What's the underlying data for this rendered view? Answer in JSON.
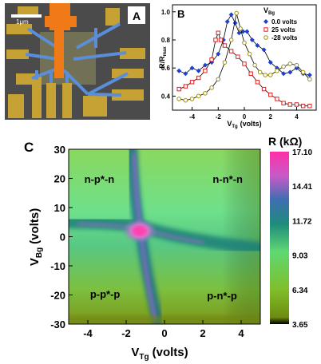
{
  "panel_a": {
    "label": "A",
    "scale_bar": "1μm"
  },
  "chart_data": [
    {
      "panel": "B",
      "type": "line",
      "xlabel_main": "V",
      "xlabel_sub": "Tg",
      "xlabel_unit": "(volts)",
      "ylabel_main": "R/R",
      "ylabel_sub": "max",
      "xlim": [
        -5.5,
        5.5
      ],
      "ylim": [
        0.3,
        1.05
      ],
      "xticks": [
        -4,
        -2,
        0,
        2,
        4
      ],
      "yticks": [
        0.4,
        0.6,
        0.8,
        1.0
      ],
      "ytick_labels": [
        "0.4",
        "0.6",
        "0.8",
        "1.0"
      ],
      "legend_title_main": "V",
      "legend_title_sub": "Bg",
      "legend_position": "top-right",
      "series": [
        {
          "name": "0.0 volts",
          "color": "#1f3fcf",
          "marker": "diamond",
          "x": [
            -5,
            -4.5,
            -4,
            -3.5,
            -3,
            -2.5,
            -2,
            -1.6,
            -1.3,
            -1.0,
            -0.7,
            -0.4,
            -0.1,
            0.2,
            0.6,
            1,
            1.5,
            2,
            2.5,
            3,
            3.5,
            4,
            4.5,
            5
          ],
          "y": [
            0.58,
            0.56,
            0.6,
            0.58,
            0.62,
            0.64,
            0.7,
            0.8,
            0.93,
            0.98,
            0.92,
            0.85,
            0.86,
            0.86,
            0.8,
            0.76,
            0.73,
            0.64,
            0.6,
            0.56,
            0.57,
            0.6,
            0.56,
            0.55
          ]
        },
        {
          "name": "25 volts",
          "color": "#e02020",
          "marker": "square",
          "x": [
            -5,
            -4.5,
            -4,
            -3.5,
            -3,
            -2.5,
            -2.2,
            -2.0,
            -1.8,
            -1.5,
            -1,
            -0.5,
            0,
            0.5,
            1,
            1.5,
            2,
            2.5,
            3,
            3.5,
            4,
            4.5,
            5
          ],
          "y": [
            0.45,
            0.47,
            0.5,
            0.53,
            0.58,
            0.66,
            0.8,
            0.85,
            0.8,
            0.76,
            0.72,
            0.68,
            0.63,
            0.56,
            0.5,
            0.45,
            0.41,
            0.38,
            0.35,
            0.34,
            0.34,
            0.33,
            0.33
          ]
        },
        {
          "name": "-28 volts",
          "color": "#a09010",
          "marker": "circle",
          "x": [
            -5,
            -4.5,
            -4,
            -3.5,
            -3,
            -2.5,
            -2,
            -1.5,
            -1,
            -0.6,
            -0.3,
            0,
            0.4,
            0.8,
            1.2,
            1.6,
            2,
            2.5,
            3,
            3.5,
            4,
            4.5,
            5
          ],
          "y": [
            0.38,
            0.37,
            0.38,
            0.4,
            0.42,
            0.46,
            0.52,
            0.64,
            0.8,
            0.99,
            0.88,
            0.78,
            0.7,
            0.62,
            0.57,
            0.55,
            0.55,
            0.58,
            0.61,
            0.63,
            0.62,
            0.57,
            0.52
          ]
        }
      ]
    },
    {
      "panel": "C",
      "type": "heatmap",
      "panel_label": "C",
      "xlabel_main": "V",
      "xlabel_sub": "Tg",
      "xlabel_unit": "(volts)",
      "ylabel_main": "V",
      "ylabel_sub": "Bg",
      "ylabel_unit": "(volts)",
      "xlim": [
        -5,
        5
      ],
      "ylim": [
        -30,
        30
      ],
      "xticks": [
        -4,
        -2,
        0,
        2,
        4
      ],
      "yticks": [
        -30,
        -20,
        -10,
        0,
        10,
        20,
        30
      ],
      "region_labels": [
        {
          "text": "n-p*-n",
          "x": -3.4,
          "y": 18.5
        },
        {
          "text": "n-n*-n",
          "x": 3.3,
          "y": 18.5
        },
        {
          "text": "p-p*-p",
          "x": -3.1,
          "y": -21
        },
        {
          "text": "p-n*-p",
          "x": 3.0,
          "y": -21.5
        }
      ],
      "colorbar": {
        "title": "R (kΩ)",
        "min": 3.65,
        "max": 17.1,
        "ticks": [
          17.1,
          14.41,
          11.72,
          9.03,
          6.34,
          3.65
        ],
        "tick_labels": [
          "17.10",
          "14.41",
          "11.72",
          "9.03",
          "6.34",
          "3.65"
        ]
      },
      "peak": {
        "x": -1.3,
        "y": 2
      }
    }
  ]
}
